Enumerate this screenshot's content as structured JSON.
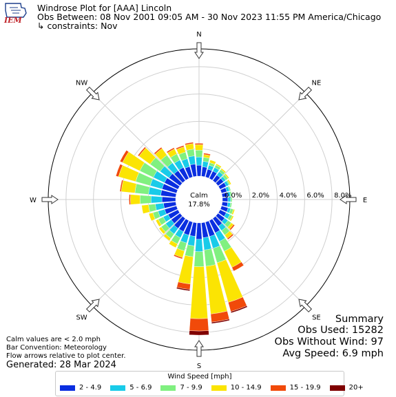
{
  "logo_text": "IEM",
  "header": {
    "line1": "Windrose Plot for [AAA] Lincoln",
    "line2": "Obs Between: 08 Nov 2001 09:05 AM - 30 Nov 2023 11:55 PM America/Chicago",
    "line3": "↳ constraints: Nov"
  },
  "notes": [
    "Calm values are < 2.0 mph",
    "Bar Convention: Meteorology",
    "Flow arrows relative to plot center."
  ],
  "generated": "Generated: 28 Mar 2024",
  "summary": [
    "Summary",
    "Obs Used: 15282",
    "Obs Without Wind: 97",
    "Avg Speed: 6.9 mph"
  ],
  "legend": {
    "title": "Wind Speed [mph]",
    "items": [
      {
        "label": "2 - 4.9",
        "color": "#0a2ee0"
      },
      {
        "label": "5 - 6.9",
        "color": "#19cbe9"
      },
      {
        "label": "7 - 9.9",
        "color": "#80f080"
      },
      {
        "label": "10 - 14.9",
        "color": "#fbe403"
      },
      {
        "label": "15 - 19.9",
        "color": "#f14a0a"
      },
      {
        "label": "20+",
        "color": "#7f0000"
      }
    ]
  },
  "chart_data": {
    "type": "windrose",
    "calm": {
      "label": "Calm",
      "value": "17.8%"
    },
    "radial_ticks": [
      0,
      2,
      4,
      6,
      8
    ],
    "radial_tick_labels": [
      "0.0%",
      "2.0%",
      "4.0%",
      "6.0%",
      "8.0%"
    ],
    "radial_max": 9.3,
    "compass": [
      {
        "label": "N",
        "angle": 0
      },
      {
        "label": "NE",
        "angle": 45
      },
      {
        "label": "E",
        "angle": 90
      },
      {
        "label": "SE",
        "angle": 135
      },
      {
        "label": "S",
        "angle": 180
      },
      {
        "label": "SW",
        "angle": 225
      },
      {
        "label": "W",
        "angle": 270
      },
      {
        "label": "NW",
        "angle": 315
      }
    ],
    "directions": [
      0,
      10,
      20,
      30,
      40,
      50,
      60,
      70,
      80,
      90,
      100,
      110,
      120,
      130,
      140,
      150,
      160,
      170,
      180,
      190,
      200,
      210,
      220,
      230,
      240,
      250,
      260,
      270,
      280,
      290,
      300,
      310,
      320,
      330,
      340,
      350
    ],
    "bins": [
      "2 - 4.9",
      "5 - 6.9",
      "7 - 9.9",
      "10 - 14.9",
      "15 - 19.9",
      "20+"
    ],
    "values": [
      [
        0.8,
        0.6,
        0.5,
        0.4,
        0.1,
        0.0
      ],
      [
        0.7,
        0.4,
        0.3,
        0.2,
        0.1,
        0.0
      ],
      [
        0.6,
        0.3,
        0.2,
        0.2,
        0.0,
        0.0
      ],
      [
        0.6,
        0.3,
        0.2,
        0.1,
        0.0,
        0.0
      ],
      [
        0.5,
        0.3,
        0.2,
        0.1,
        0.0,
        0.0
      ],
      [
        0.5,
        0.2,
        0.2,
        0.1,
        0.0,
        0.0
      ],
      [
        0.5,
        0.2,
        0.1,
        0.1,
        0.0,
        0.0
      ],
      [
        0.4,
        0.2,
        0.1,
        0.0,
        0.0,
        0.0
      ],
      [
        0.4,
        0.2,
        0.1,
        0.0,
        0.0,
        0.0
      ],
      [
        0.4,
        0.2,
        0.1,
        0.0,
        0.0,
        0.0
      ],
      [
        0.4,
        0.2,
        0.1,
        0.0,
        0.0,
        0.0
      ],
      [
        0.5,
        0.2,
        0.2,
        0.1,
        0.0,
        0.0
      ],
      [
        0.5,
        0.3,
        0.2,
        0.1,
        0.0,
        0.0
      ],
      [
        0.6,
        0.3,
        0.3,
        0.2,
        0.1,
        0.0
      ],
      [
        0.7,
        0.4,
        0.4,
        0.3,
        0.1,
        0.0
      ],
      [
        1.0,
        0.7,
        0.8,
        1.3,
        0.3,
        0.0
      ],
      [
        1.1,
        0.9,
        1.1,
        3.0,
        0.7,
        0.1
      ],
      [
        1.1,
        0.9,
        1.2,
        3.5,
        0.6,
        0.1
      ],
      [
        1.2,
        0.9,
        1.1,
        3.8,
        0.9,
        0.3
      ],
      [
        1.0,
        0.7,
        0.8,
        2.0,
        0.4,
        0.1
      ],
      [
        1.0,
        0.6,
        0.6,
        0.5,
        0.1,
        0.0
      ],
      [
        0.9,
        0.5,
        0.5,
        0.3,
        0.0,
        0.0
      ],
      [
        0.9,
        0.5,
        0.4,
        0.2,
        0.0,
        0.0
      ],
      [
        0.8,
        0.5,
        0.4,
        0.2,
        0.0,
        0.0
      ],
      [
        0.8,
        0.4,
        0.4,
        0.2,
        0.0,
        0.0
      ],
      [
        0.9,
        0.5,
        0.4,
        0.3,
        0.0,
        0.0
      ],
      [
        0.9,
        0.6,
        0.5,
        0.5,
        0.0,
        0.0
      ],
      [
        1.0,
        0.8,
        0.8,
        0.7,
        0.1,
        0.0
      ],
      [
        1.1,
        0.9,
        1.0,
        1.0,
        0.1,
        0.0
      ],
      [
        1.1,
        0.9,
        1.1,
        1.3,
        0.2,
        0.0
      ],
      [
        1.1,
        0.9,
        1.1,
        1.4,
        0.2,
        0.0
      ],
      [
        1.0,
        0.8,
        0.9,
        1.0,
        0.1,
        0.0
      ],
      [
        0.9,
        0.7,
        0.7,
        0.6,
        0.1,
        0.0
      ],
      [
        0.9,
        0.6,
        0.5,
        0.4,
        0.1,
        0.0
      ],
      [
        0.8,
        0.6,
        0.5,
        0.4,
        0.1,
        0.0
      ],
      [
        0.9,
        0.6,
        0.5,
        0.4,
        0.1,
        0.0
      ]
    ]
  }
}
